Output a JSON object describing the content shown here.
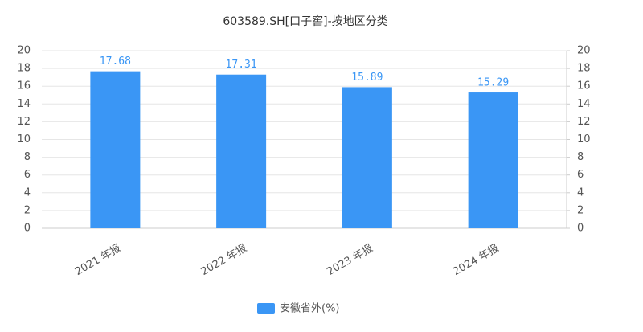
{
  "chart_data": {
    "type": "bar",
    "title": "603589.SH[口子窖]-按地区分类",
    "categories": [
      "2021 年报",
      "2022 年报",
      "2023 年报",
      "2024 年报"
    ],
    "series": [
      {
        "name": "安徽省外(%)",
        "color": "#3a96f5",
        "values": [
          17.68,
          17.31,
          15.89,
          15.29
        ]
      }
    ],
    "ylim": [
      0,
      20
    ],
    "yticks": [
      0,
      2,
      4,
      6,
      8,
      10,
      12,
      14,
      16,
      18,
      20
    ],
    "y2lim": [
      0,
      20
    ],
    "y2ticks": [
      0,
      2,
      4,
      6,
      8,
      10,
      12,
      14,
      16,
      18,
      20
    ],
    "grid": true,
    "legend": "bottom"
  }
}
